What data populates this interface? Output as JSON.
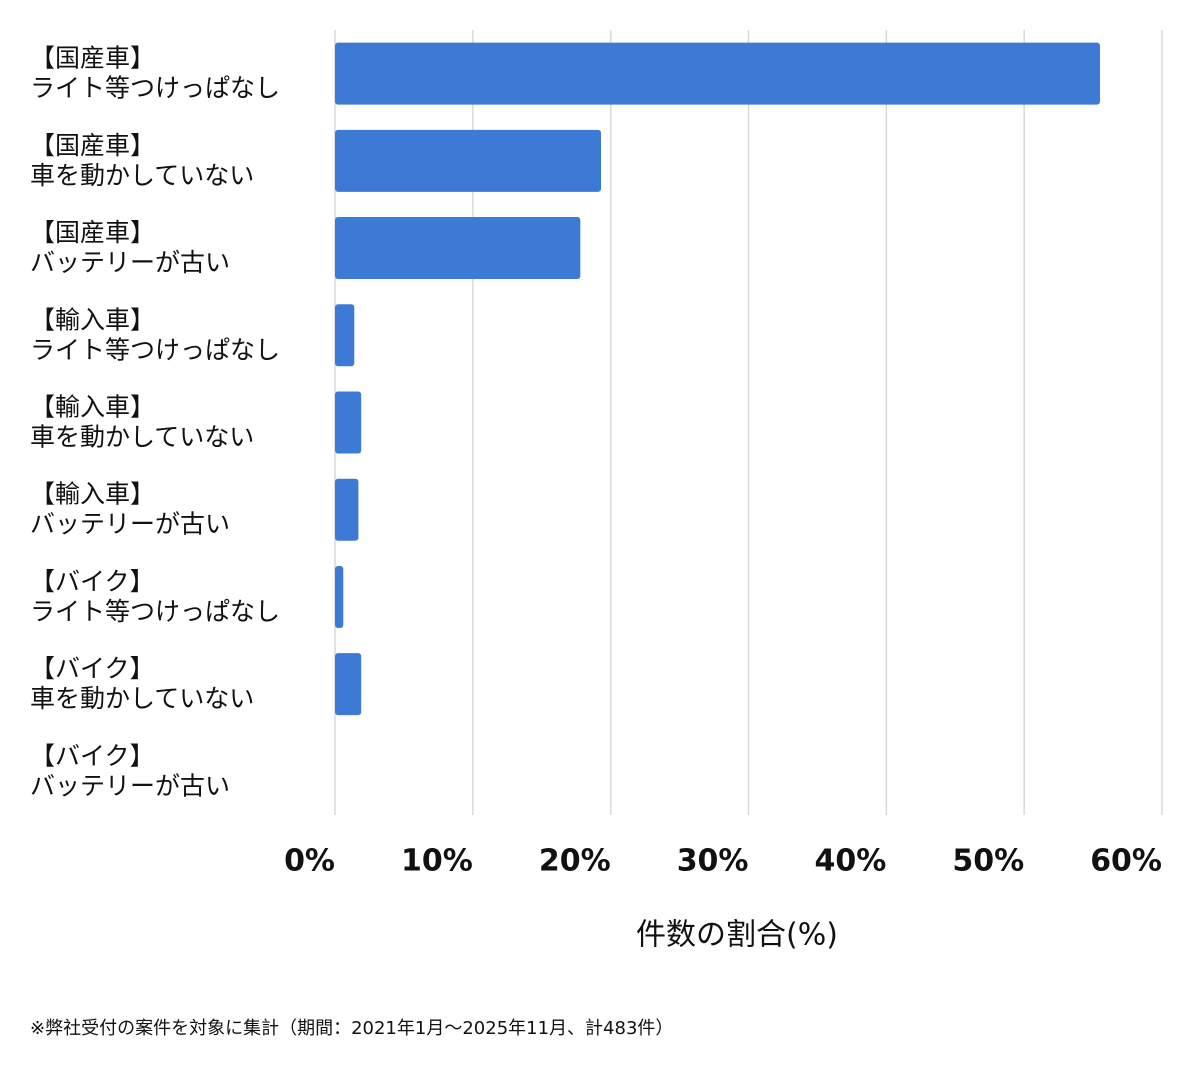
{
  "chart_data": {
    "type": "barh",
    "categories": [
      [
        "【国産車】",
        "ライト等つけっぱなし"
      ],
      [
        "【国産車】",
        "車を動かしていない"
      ],
      [
        "【国産車】",
        "バッテリーが古い"
      ],
      [
        "【輸入車】",
        "ライト等つけっぱなし"
      ],
      [
        "【輸入車】",
        "車を動かしていない"
      ],
      [
        "【輸入車】",
        "バッテリーが古い"
      ],
      [
        "【バイク】",
        "ライト等つけっぱなし"
      ],
      [
        "【バイク】",
        "車を動かしていない"
      ],
      [
        "【バイク】",
        "バッテリーが古い"
      ]
    ],
    "values": [
      55.5,
      19.3,
      17.8,
      1.4,
      1.9,
      1.7,
      0.6,
      1.9,
      0
    ],
    "color": "#3d7ad6",
    "xlim": [
      0,
      60
    ],
    "xticks": [
      {
        "value": 0,
        "label": "0%"
      },
      {
        "value": 10,
        "label": "10%"
      },
      {
        "value": 20,
        "label": "20%"
      },
      {
        "value": 30,
        "label": "30%"
      },
      {
        "value": 40,
        "label": "40%"
      },
      {
        "value": 50,
        "label": "50%"
      },
      {
        "value": 60,
        "label": "60%"
      }
    ],
    "xlabel": "件数の割合(%)",
    "grid": true,
    "footnote": "※弊社受付の案件を対象に集計（期間：2021年1月～2025年11月、計483件）"
  }
}
